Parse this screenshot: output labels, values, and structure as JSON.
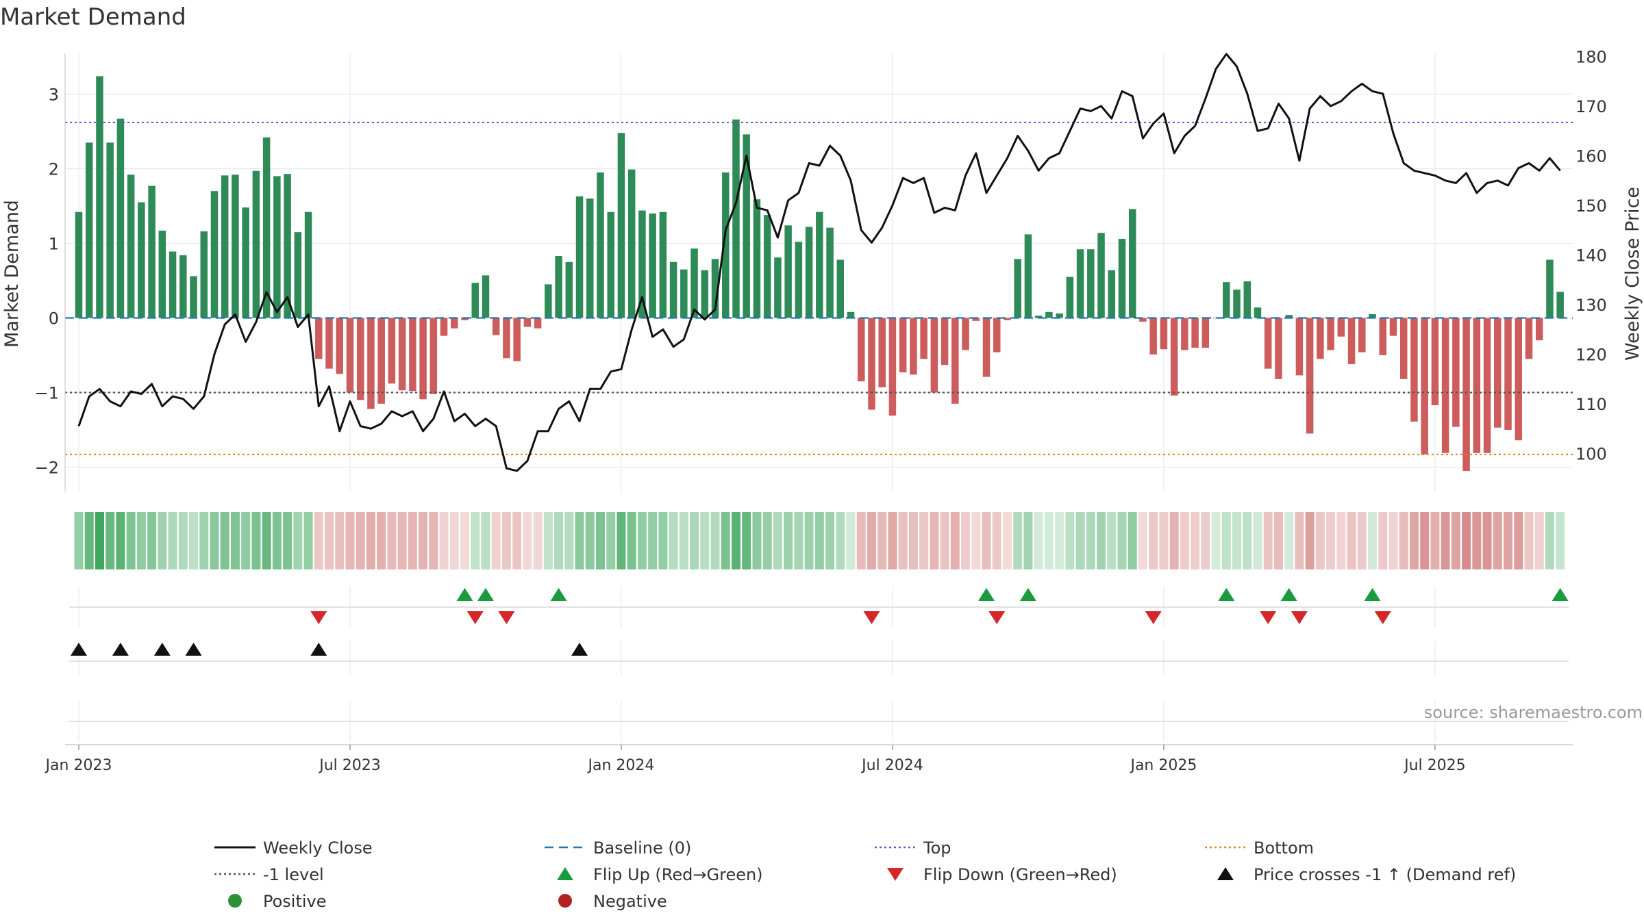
{
  "chart_data": {
    "type": "bar",
    "title": "Market Demand",
    "ylabel": "Market Demand",
    "ylabel_right": "Weekly Close Price",
    "ylim": [
      -2.3,
      3.5
    ],
    "ylim_right": [
      93,
      181
    ],
    "yticks": [
      -2,
      -1,
      0,
      1,
      2,
      3
    ],
    "yticks_right": [
      100,
      110,
      120,
      130,
      140,
      150,
      160,
      170,
      180
    ],
    "xticks": [
      "Jan 2023",
      "Jul 2023",
      "Jan 2024",
      "Jul 2024",
      "Jan 2025",
      "Jul 2025"
    ],
    "xtick_weeks": [
      0,
      26,
      52,
      78,
      104,
      130
    ],
    "weeks_start": "2023-01-02",
    "levels": {
      "top": 2.62,
      "minus_one": -1,
      "bottom": -1.83,
      "baseline": 0
    },
    "demand": [
      1.42,
      2.35,
      3.24,
      2.35,
      2.67,
      1.92,
      1.55,
      1.77,
      1.17,
      0.89,
      0.84,
      0.56,
      1.16,
      1.7,
      1.91,
      1.92,
      1.48,
      1.97,
      2.42,
      1.9,
      1.93,
      1.15,
      1.42,
      -0.55,
      -0.68,
      -0.75,
      -1.0,
      -1.1,
      -1.22,
      -1.15,
      -0.88,
      -0.97,
      -0.98,
      -1.09,
      -1.02,
      -0.24,
      -0.14,
      -0.03,
      0.47,
      0.57,
      -0.23,
      -0.54,
      -0.58,
      -0.12,
      -0.14,
      0.45,
      0.83,
      0.75,
      1.63,
      1.6,
      1.95,
      1.42,
      2.48,
      1.99,
      1.44,
      1.4,
      1.42,
      0.75,
      0.65,
      0.93,
      0.64,
      0.79,
      1.95,
      2.66,
      2.46,
      1.59,
      1.38,
      0.81,
      1.24,
      1.02,
      1.22,
      1.42,
      1.21,
      0.78,
      0.08,
      -0.85,
      -1.23,
      -0.93,
      -1.31,
      -0.73,
      -0.76,
      -0.55,
      -1.0,
      -0.63,
      -1.15,
      -0.43,
      -0.04,
      -0.79,
      -0.46,
      -0.03,
      0.79,
      1.12,
      0.03,
      0.08,
      0.06,
      0.55,
      0.92,
      0.92,
      1.14,
      0.64,
      1.06,
      1.46,
      -0.05,
      -0.49,
      -0.42,
      -1.04,
      -0.43,
      -0.4,
      -0.4,
      0.0,
      0.48,
      0.38,
      0.49,
      0.14,
      -0.68,
      -0.82,
      0.04,
      -0.77,
      -1.55,
      -0.55,
      -0.43,
      -0.25,
      -0.62,
      -0.46,
      0.05,
      -0.5,
      -0.24,
      -0.82,
      -1.39,
      -1.83,
      -1.17,
      -1.81,
      -1.46,
      -2.05,
      -1.81,
      -1.81,
      -1.47,
      -1.5,
      -1.64,
      -0.55,
      -0.3,
      0.78,
      0.35
    ],
    "price": [
      105.5,
      111.5,
      113,
      110.5,
      109.5,
      112.5,
      112,
      114,
      109.5,
      111.5,
      111,
      109,
      111.5,
      120,
      126,
      128,
      122.5,
      126.5,
      132.5,
      128.5,
      131.5,
      125.5,
      128,
      109.5,
      113.5,
      104.5,
      110.5,
      105.5,
      105,
      106,
      108.5,
      107.5,
      108.5,
      104.5,
      107,
      112.5,
      106.5,
      108,
      105.5,
      107,
      105.5,
      97,
      96.5,
      98.5,
      104.5,
      104.5,
      109,
      110.5,
      106.5,
      113,
      113,
      116.5,
      117,
      125,
      131.5,
      123.5,
      125,
      121.5,
      123,
      129,
      127,
      129,
      145,
      150.5,
      160,
      149.5,
      149,
      143.5,
      151,
      152.5,
      158.5,
      158,
      162,
      160,
      155,
      145,
      142.5,
      145.5,
      150,
      155.5,
      154.5,
      155.5,
      148.5,
      149.5,
      149,
      156,
      160.5,
      152.5,
      156,
      159.5,
      164,
      161,
      157,
      159.5,
      160.5,
      165,
      169.5,
      169,
      170,
      167.5,
      173,
      172,
      163.5,
      166.5,
      168.5,
      160.5,
      164,
      166,
      171.5,
      177.5,
      180.5,
      178,
      172.5,
      165,
      165.5,
      170.5,
      167.5,
      159,
      169.5,
      172,
      170,
      171,
      173,
      174.5,
      173,
      172.5,
      164.5,
      158.5,
      157,
      156.5,
      156,
      155,
      154.5,
      156.5,
      152.5,
      154.5,
      155,
      154,
      157.5,
      158.5,
      157,
      159.5,
      157
    ],
    "flip_up": [
      37,
      39,
      46,
      87,
      91,
      110,
      116,
      124,
      142
    ],
    "flip_down": [
      23,
      38,
      41,
      76,
      88,
      103,
      114,
      117,
      125
    ],
    "price_crosses": [
      0,
      4,
      8,
      11,
      23,
      48
    ],
    "watermark": "source: sharemaestro.com",
    "legend": {
      "position": "bottom",
      "items": [
        {
          "label": "Weekly Close",
          "symbol": "line",
          "color": "#111111"
        },
        {
          "label": "Baseline (0)",
          "symbol": "dash",
          "color": "#1f77b4"
        },
        {
          "label": "Top",
          "symbol": "dot",
          "color": "#5b5bd6"
        },
        {
          "label": "Bottom",
          "symbol": "dot",
          "color": "#e08a1e"
        },
        {
          "label": "-1 level",
          "symbol": "dot",
          "color": "#555555"
        },
        {
          "label": "Flip Up (Red→Green)",
          "symbol": "tri-up",
          "color": "#1a9c3e"
        },
        {
          "label": "Flip Down (Green→Red)",
          "symbol": "tri-down",
          "color": "#d62728"
        },
        {
          "label": "Price crosses -1 ↑ (Demand ref)",
          "symbol": "tri-up",
          "color": "#111111"
        },
        {
          "label": "Positive",
          "symbol": "circle",
          "color": "#2a9134"
        },
        {
          "label": "Negative",
          "symbol": "circle",
          "color": "#b22222"
        }
      ]
    },
    "colors": {
      "positive": "#2e8b57",
      "negative": "#cd5c5c",
      "heat_pos": "#2e9e4f",
      "heat_neg": "#c0504d",
      "grid": "#e8e8e8",
      "axis": "#cccccc"
    }
  }
}
